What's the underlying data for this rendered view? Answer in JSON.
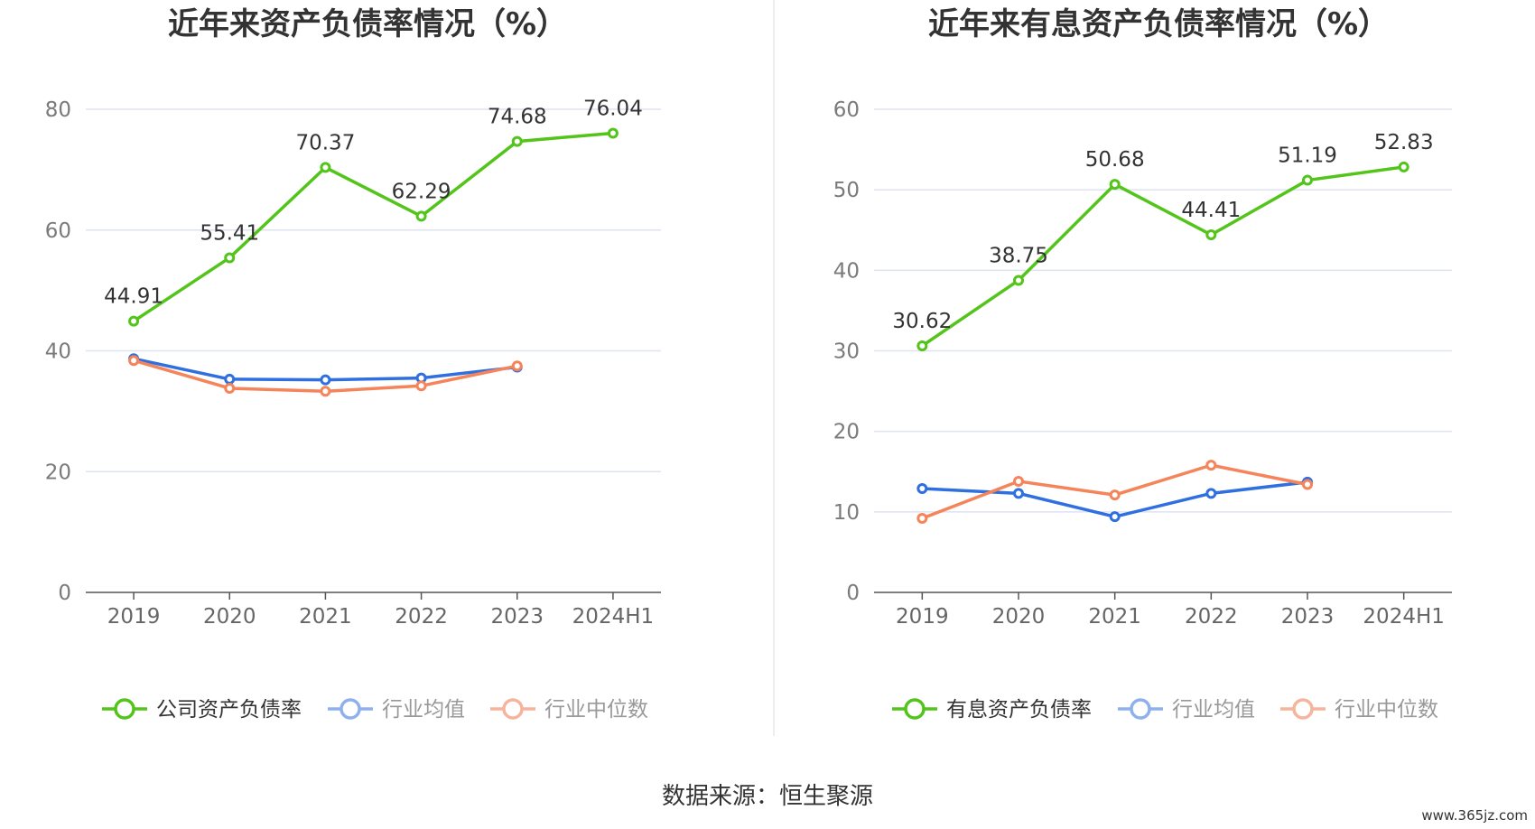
{
  "source_label": "数据来源：恒生聚源",
  "watermark": "www.365jz.com",
  "colors": {
    "green": "#52c41a",
    "blue": "#2f6fe0",
    "orange": "#f5845a",
    "blue_legend": "#8fb0ee",
    "orange_legend": "#f7b49c",
    "grid": "#dfe3f0",
    "axis": "#555555",
    "divider": "#eeeeee"
  },
  "chart_data": [
    {
      "type": "line",
      "title": "近年来资产负债率情况（%）",
      "categories": [
        "2019",
        "2020",
        "2021",
        "2022",
        "2023",
        "2024H1"
      ],
      "ylim": [
        0,
        80
      ],
      "yticks": [
        "0",
        "20",
        "40",
        "60",
        "80"
      ],
      "grid": true,
      "legend_position": "bottom",
      "series": [
        {
          "name": "公司资产负债率",
          "color": "#52c41a",
          "show_labels": true,
          "values": [
            44.91,
            55.41,
            70.37,
            62.29,
            74.68,
            76.04
          ],
          "labels": [
            "44.91",
            "55.41",
            "70.37",
            "62.29",
            "74.68",
            "76.04"
          ]
        },
        {
          "name": "行业均值",
          "color": "#2f6fe0",
          "show_labels": false,
          "values": [
            38.7,
            35.3,
            35.2,
            35.5,
            37.3,
            null
          ]
        },
        {
          "name": "行业中位数",
          "color": "#f5845a",
          "show_labels": false,
          "values": [
            38.4,
            33.8,
            33.3,
            34.2,
            37.5,
            null
          ]
        }
      ]
    },
    {
      "type": "line",
      "title": "近年来有息资产负债率情况（%）",
      "categories": [
        "2019",
        "2020",
        "2021",
        "2022",
        "2023",
        "2024H1"
      ],
      "ylim": [
        0,
        60
      ],
      "yticks": [
        "0",
        "10",
        "20",
        "30",
        "40",
        "50",
        "60"
      ],
      "grid": true,
      "legend_position": "bottom",
      "series": [
        {
          "name": "有息资产负债率",
          "color": "#52c41a",
          "show_labels": true,
          "values": [
            30.62,
            38.75,
            50.68,
            44.41,
            51.19,
            52.83
          ],
          "labels": [
            "30.62",
            "38.75",
            "50.68",
            "44.41",
            "51.19",
            "52.83"
          ]
        },
        {
          "name": "行业均值",
          "color": "#2f6fe0",
          "show_labels": false,
          "values": [
            12.9,
            12.3,
            9.4,
            12.3,
            13.7,
            null
          ]
        },
        {
          "name": "行业中位数",
          "color": "#f5845a",
          "show_labels": false,
          "values": [
            9.2,
            13.8,
            12.1,
            15.8,
            13.4,
            null
          ]
        }
      ]
    }
  ]
}
